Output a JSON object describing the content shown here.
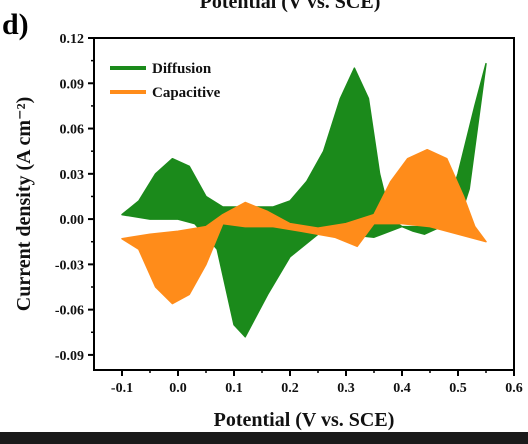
{
  "panel_label": "d)",
  "top_cut_title": "Potential (V vs. SCE)",
  "chart_data": {
    "type": "area",
    "xlabel": "Potential (V vs. SCE)",
    "ylabel": "Current density (A cm⁻²)",
    "xlim": [
      -0.15,
      0.6
    ],
    "ylim": [
      -0.1,
      0.12
    ],
    "xticks": [
      -0.1,
      0.0,
      0.1,
      0.2,
      0.3,
      0.4,
      0.5,
      0.6
    ],
    "xtick_labels": [
      "-0.1",
      "0.0",
      "0.1",
      "0.2",
      "0.3",
      "0.4",
      "0.5",
      "0.6"
    ],
    "yticks": [
      -0.09,
      -0.06,
      -0.03,
      0.0,
      0.03,
      0.06,
      0.09,
      0.12
    ],
    "ytick_labels": [
      "-0.09",
      "-0.06",
      "-0.03",
      "0.00",
      "0.03",
      "0.06",
      "0.09",
      "0.12"
    ],
    "grid": false,
    "legend_position": "top-left",
    "series": [
      {
        "name": "Diffusion",
        "color": "#1b8a1b",
        "upper": [
          [
            -0.1,
            0.003
          ],
          [
            -0.07,
            0.012
          ],
          [
            -0.04,
            0.03
          ],
          [
            -0.01,
            0.04
          ],
          [
            0.02,
            0.035
          ],
          [
            0.05,
            0.015
          ],
          [
            0.08,
            0.008
          ],
          [
            0.12,
            0.008
          ],
          [
            0.17,
            0.008
          ],
          [
            0.2,
            0.012
          ],
          [
            0.23,
            0.025
          ],
          [
            0.26,
            0.045
          ],
          [
            0.29,
            0.08
          ],
          [
            0.315,
            0.1
          ],
          [
            0.34,
            0.08
          ],
          [
            0.36,
            0.03
          ],
          [
            0.38,
            0.0
          ],
          [
            0.4,
            -0.005
          ],
          [
            0.42,
            -0.008
          ],
          [
            0.44,
            -0.01
          ],
          [
            0.47,
            -0.005
          ],
          [
            0.5,
            0.03
          ],
          [
            0.53,
            0.075
          ],
          [
            0.55,
            0.103
          ]
        ],
        "lower": [
          [
            0.55,
            0.103
          ],
          [
            0.52,
            0.02
          ],
          [
            0.5,
            -0.003
          ],
          [
            0.45,
            -0.005
          ],
          [
            0.4,
            -0.005
          ],
          [
            0.35,
            -0.012
          ],
          [
            0.3,
            -0.01
          ],
          [
            0.25,
            -0.01
          ],
          [
            0.2,
            -0.025
          ],
          [
            0.16,
            -0.05
          ],
          [
            0.12,
            -0.078
          ],
          [
            0.1,
            -0.07
          ],
          [
            0.07,
            -0.02
          ],
          [
            0.03,
            -0.003
          ],
          [
            0.0,
            0.0
          ],
          [
            -0.05,
            0.0
          ],
          [
            -0.1,
            0.003
          ]
        ]
      },
      {
        "name": "Capacitive",
        "color": "#ff8c1a",
        "upper": [
          [
            -0.1,
            -0.013
          ],
          [
            -0.05,
            -0.01
          ],
          [
            0.0,
            -0.008
          ],
          [
            0.05,
            -0.005
          ],
          [
            0.08,
            0.003
          ],
          [
            0.12,
            0.011
          ],
          [
            0.16,
            0.005
          ],
          [
            0.2,
            -0.003
          ],
          [
            0.25,
            -0.006
          ],
          [
            0.3,
            -0.003
          ],
          [
            0.35,
            0.003
          ],
          [
            0.38,
            0.025
          ],
          [
            0.41,
            0.04
          ],
          [
            0.445,
            0.046
          ],
          [
            0.48,
            0.04
          ],
          [
            0.51,
            0.015
          ],
          [
            0.53,
            -0.005
          ],
          [
            0.55,
            -0.015
          ]
        ],
        "lower": [
          [
            0.55,
            -0.015
          ],
          [
            0.5,
            -0.01
          ],
          [
            0.45,
            -0.005
          ],
          [
            0.4,
            -0.003
          ],
          [
            0.35,
            -0.003
          ],
          [
            0.32,
            -0.018
          ],
          [
            0.28,
            -0.012
          ],
          [
            0.22,
            -0.008
          ],
          [
            0.17,
            -0.005
          ],
          [
            0.12,
            -0.005
          ],
          [
            0.08,
            -0.003
          ],
          [
            0.05,
            -0.03
          ],
          [
            0.02,
            -0.05
          ],
          [
            -0.01,
            -0.056
          ],
          [
            -0.04,
            -0.045
          ],
          [
            -0.07,
            -0.02
          ],
          [
            -0.1,
            -0.013
          ]
        ]
      }
    ]
  }
}
